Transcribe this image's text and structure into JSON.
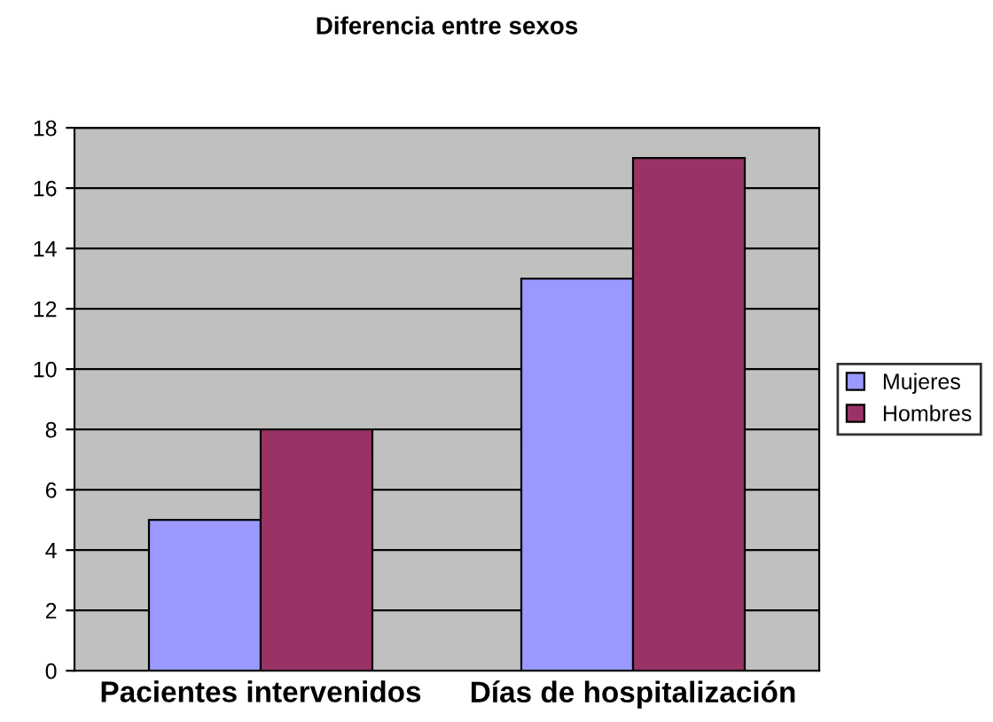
{
  "chart_data": {
    "type": "bar",
    "title": "Diferencia entre sexos",
    "categories": [
      "Pacientes intervenidos",
      "Días de hospitalización"
    ],
    "series": [
      {
        "name": "Mujeres",
        "color": "#9999ff",
        "values": [
          5,
          13
        ]
      },
      {
        "name": "Hombres",
        "color": "#993366",
        "values": [
          8,
          17
        ]
      }
    ],
    "ylim": [
      0,
      18
    ],
    "yticks": [
      0,
      2,
      4,
      6,
      8,
      10,
      12,
      14,
      16,
      18
    ],
    "grid": "y",
    "legend": "right"
  }
}
